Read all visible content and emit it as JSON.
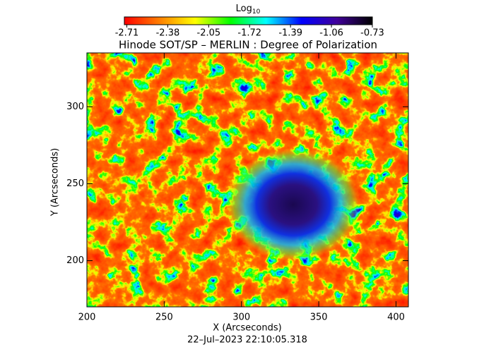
{
  "chart_data": {
    "type": "heatmap",
    "title": "Hinode SOT/SP – MERLIN : Degree of Polarization",
    "colorbar_label": "Log",
    "colorbar_label_sub": "10",
    "colorbar_lim": [
      -2.73,
      -0.73
    ],
    "colorbar_ticks": [
      -2.71,
      -2.38,
      -2.05,
      -1.72,
      -1.39,
      -1.06,
      -0.73
    ],
    "colormap": [
      "#ff0000",
      "#ff8000",
      "#ffff00",
      "#00ff00",
      "#00ffff",
      "#0000ff",
      "#40009a",
      "#000000"
    ],
    "x_label": "X (Arcseconds)",
    "y_label": "Y (Arcseconds)",
    "xlim": [
      200,
      408
    ],
    "ylim": [
      170,
      335
    ],
    "xticks": [
      200,
      250,
      300,
      350,
      400
    ],
    "yticks": [
      200,
      250,
      300
    ],
    "footer": "22–Jul–2023 22:10:05.318"
  }
}
